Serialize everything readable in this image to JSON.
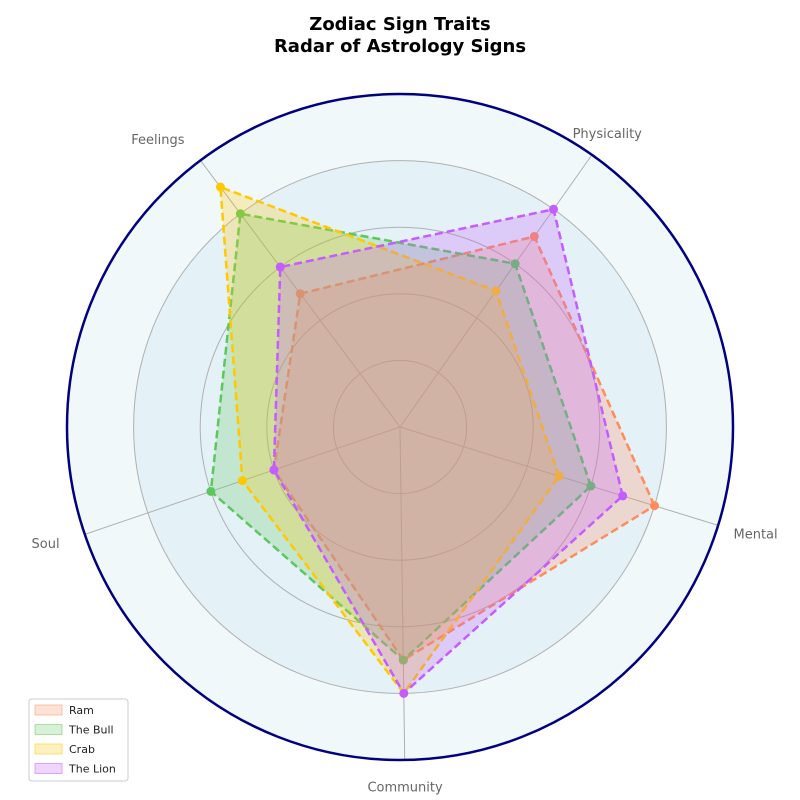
{
  "chart_data": {
    "type": "radar",
    "title_line1": "Zodiac Sign Traits",
    "title_line2": "Radar of Astrology Signs",
    "axes": [
      "Mental",
      "Physicality",
      "Feelings",
      "Soul",
      "Community"
    ],
    "rlim": [
      0,
      10
    ],
    "grid": true,
    "legend_position": "bottom-left",
    "series": [
      {
        "name": "Ram",
        "color": "#ff8c5a",
        "values": [
          8,
          7,
          5,
          4,
          7
        ]
      },
      {
        "name": "The Bull",
        "color": "#5cc85c",
        "values": [
          6,
          6,
          8,
          6,
          7
        ]
      },
      {
        "name": "Crab",
        "color": "#ffc800",
        "values": [
          5,
          5,
          9,
          5,
          8
        ]
      },
      {
        "name": "The Lion",
        "color": "#c45cff",
        "values": [
          7,
          8,
          6,
          4,
          8
        ]
      }
    ]
  }
}
